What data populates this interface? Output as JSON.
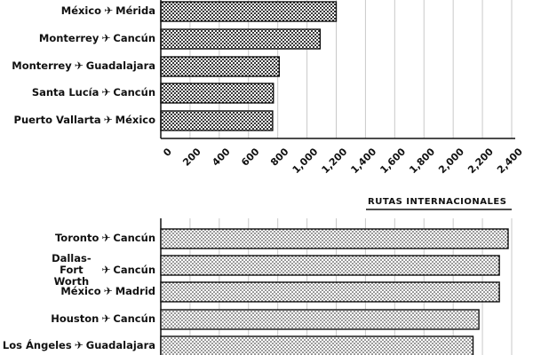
{
  "chart_data": [
    {
      "type": "bar",
      "orientation": "horizontal",
      "categories": [
        {
          "from": "México",
          "to": "Mérida"
        },
        {
          "from": "Monterrey",
          "to": "Cancún"
        },
        {
          "from": "Monterrey",
          "to": "Guadalajara"
        },
        {
          "from": "Santa Lucía",
          "to": "Cancún"
        },
        {
          "from": "Puerto Vallarta",
          "to": "México"
        }
      ],
      "values": [
        1200,
        1090,
        810,
        770,
        765
      ],
      "xlim": [
        0,
        2400
      ],
      "xticks": [
        "0",
        "200",
        "400",
        "600",
        "800",
        "1,000",
        "1,200",
        "1,400",
        "1,600",
        "1,800",
        "2,000",
        "2,200",
        "2,400"
      ],
      "grid": true
    },
    {
      "type": "bar",
      "orientation": "horizontal",
      "title": "RUTAS INTERNACIONALES",
      "categories": [
        {
          "from": "Toronto",
          "to": "Cancún"
        },
        {
          "from": "Dallas-Fort Worth",
          "to": "Cancún"
        },
        {
          "from": "México",
          "to": "Madrid"
        },
        {
          "from": "Houston",
          "to": "Cancún"
        },
        {
          "from": "Los Ángeles",
          "to": "Guadalajara"
        }
      ],
      "values": [
        2400,
        2340,
        2340,
        2200,
        2160
      ],
      "xlim": [
        0,
        2400
      ],
      "grid": true
    }
  ]
}
